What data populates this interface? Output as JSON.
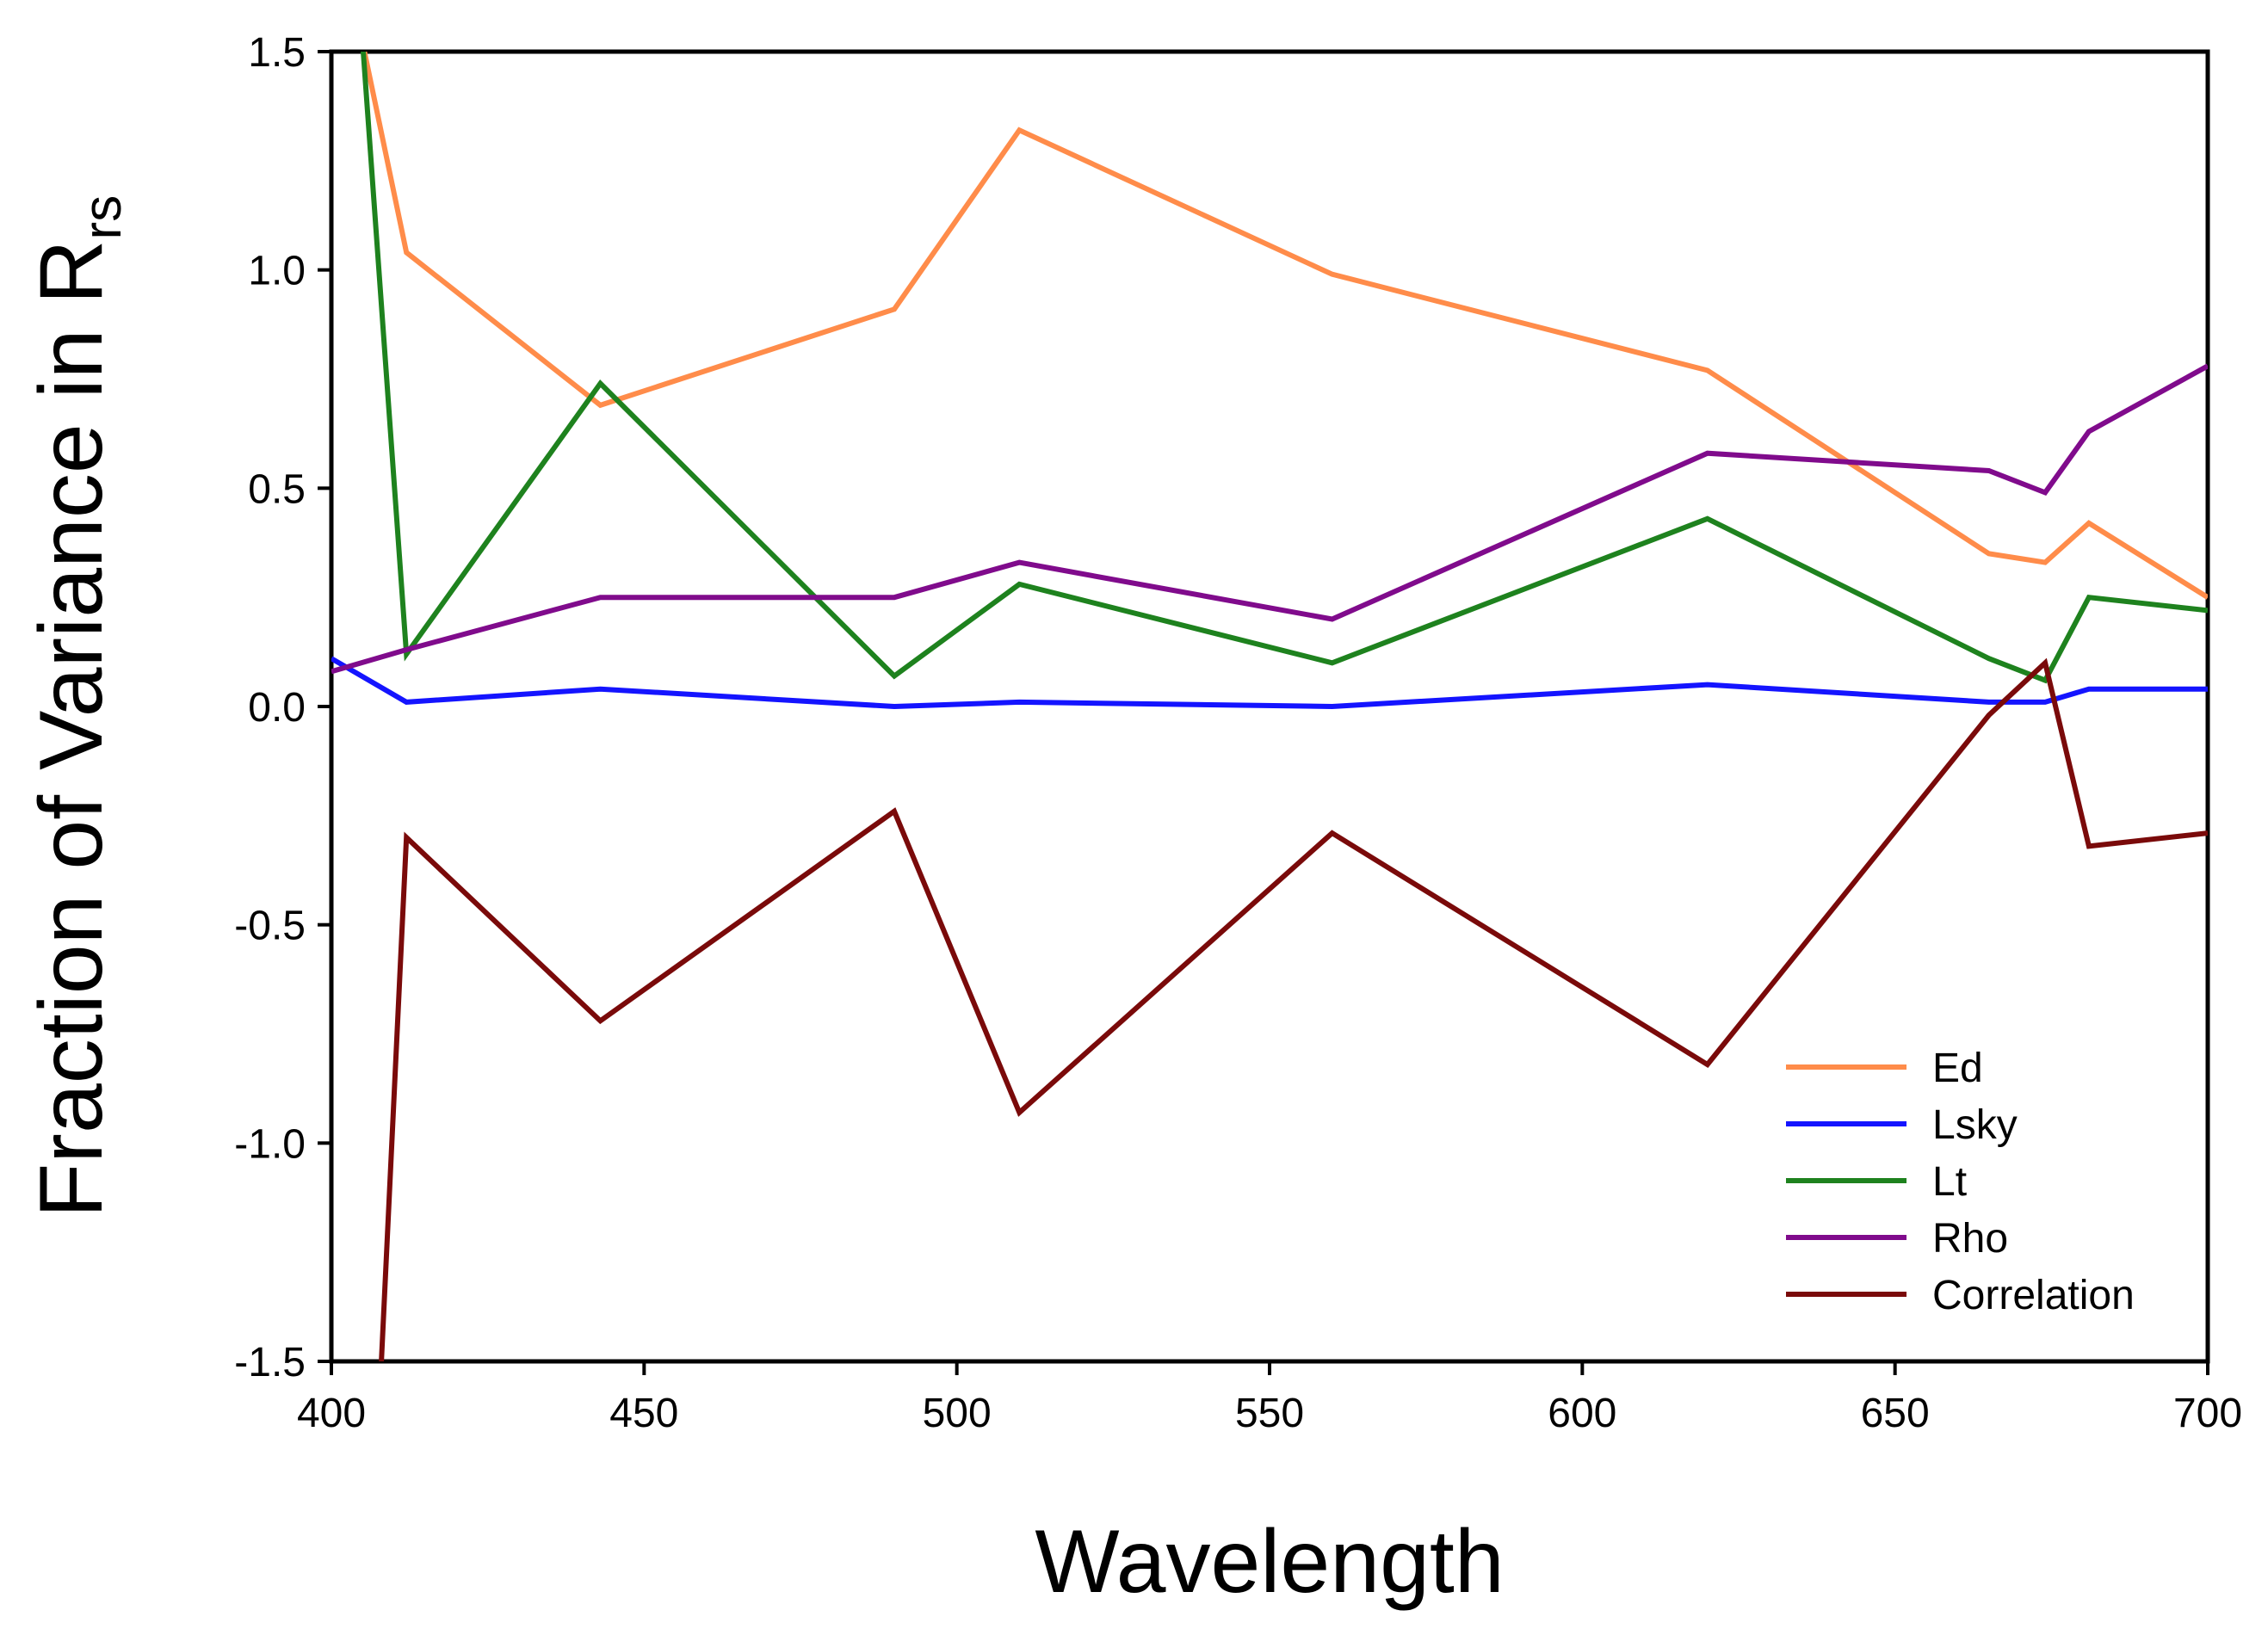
{
  "chart_data": {
    "type": "line",
    "title": "",
    "xlabel": "Wavelength",
    "ylabel_main": "Fraction of Variance in R",
    "ylabel_sub": "rs",
    "xlim": [
      400,
      700
    ],
    "ylim": [
      -1.5,
      1.5
    ],
    "xticks": [
      400,
      450,
      500,
      550,
      600,
      650,
      700
    ],
    "yticks": [
      -1.5,
      -1.0,
      -0.5,
      0.0,
      0.5,
      1.0,
      1.5
    ],
    "xtick_labels": [
      "400",
      "450",
      "500",
      "550",
      "600",
      "650",
      "700"
    ],
    "ytick_labels": [
      "-1.5",
      "-1.0",
      "-0.5",
      "0.0",
      "0.5",
      "1.0",
      "1.5"
    ],
    "grid": false,
    "legend_position": "bottom-right",
    "series": [
      {
        "name": "Ed",
        "color": "#ff8c4a",
        "x": [
          405,
          412,
          443,
          490,
          510,
          560,
          620,
          665,
          674,
          681,
          700
        ],
        "y": [
          1.52,
          1.04,
          0.69,
          0.91,
          1.32,
          0.99,
          0.77,
          0.35,
          0.33,
          0.42,
          0.25
        ]
      },
      {
        "name": "Lsky",
        "color": "#1414ff",
        "x": [
          400,
          412,
          443,
          490,
          510,
          560,
          620,
          665,
          674,
          681,
          700
        ],
        "y": [
          0.11,
          0.01,
          0.04,
          0.0,
          0.01,
          0.0,
          0.05,
          0.01,
          0.01,
          0.04,
          0.04
        ]
      },
      {
        "name": "Lt",
        "color": "#1e821e",
        "x": [
          405,
          412,
          443,
          490,
          510,
          560,
          620,
          665,
          674,
          681,
          700
        ],
        "y": [
          1.52,
          0.12,
          0.74,
          0.07,
          0.28,
          0.1,
          0.43,
          0.11,
          0.06,
          0.25,
          0.22
        ]
      },
      {
        "name": "Rho",
        "color": "#800b8c",
        "x": [
          400,
          412,
          443,
          490,
          510,
          560,
          620,
          665,
          674,
          681,
          700
        ],
        "y": [
          0.08,
          0.13,
          0.25,
          0.25,
          0.33,
          0.2,
          0.58,
          0.54,
          0.49,
          0.63,
          0.78
        ]
      },
      {
        "name": "Correlation",
        "color": "#7a0a0a",
        "x": [
          408,
          412,
          443,
          490,
          510,
          560,
          620,
          665,
          674,
          681,
          700
        ],
        "y": [
          -1.5,
          -0.3,
          -0.72,
          -0.24,
          -0.93,
          -0.29,
          -0.82,
          -0.02,
          0.1,
          -0.32,
          -0.29
        ]
      }
    ]
  }
}
